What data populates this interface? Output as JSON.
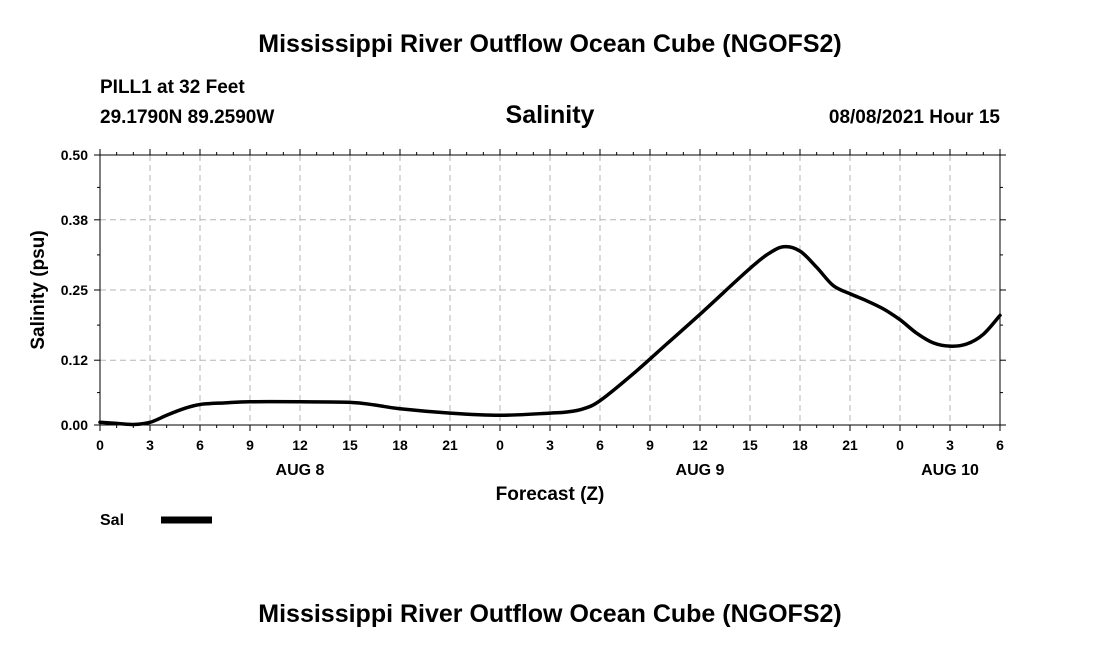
{
  "header": {
    "title": "Mississippi River Outflow Ocean Cube (NGOFS2)",
    "station": "PILL1 at 32 Feet",
    "coords": "29.1790N  89.2590W",
    "subtitle": "Salinity",
    "datetime": "08/08/2021 Hour 15"
  },
  "footer": {
    "title": "Mississippi River Outflow Ocean Cube (NGOFS2)"
  },
  "chart_data": {
    "type": "line",
    "title": "Salinity",
    "xlabel": "Forecast (Z)",
    "ylabel": "Salinity (psu)",
    "x_hours": [
      0,
      3,
      6,
      9,
      12,
      15,
      18,
      21,
      24,
      27,
      30,
      33,
      36,
      39,
      42,
      45,
      48,
      51,
      54
    ],
    "xtick_labels": [
      "0",
      "3",
      "6",
      "9",
      "12",
      "15",
      "18",
      "21",
      "0",
      "3",
      "6",
      "9",
      "12",
      "15",
      "18",
      "21",
      "0",
      "3",
      "6"
    ],
    "day_labels": [
      {
        "label": "AUG 8",
        "hour": 12
      },
      {
        "label": "AUG 9",
        "hour": 36
      },
      {
        "label": "AUG 10",
        "hour": 51
      }
    ],
    "yticks": [
      0.0,
      0.12,
      0.25,
      0.38,
      0.5
    ],
    "ytick_labels": [
      "0.00",
      "0.12",
      "0.25",
      "0.38",
      "0.50"
    ],
    "ylim": [
      0.0,
      0.5
    ],
    "xlim": [
      0,
      54
    ],
    "grid": true,
    "series": [
      {
        "name": "Sal",
        "color": "#000000",
        "x": [
          0,
          1,
          2,
          3,
          4,
          5,
          6,
          7.5,
          9,
          12,
          15,
          16.5,
          18,
          21,
          24,
          27,
          28,
          29,
          30,
          32,
          34,
          36,
          38,
          39,
          40,
          41,
          42,
          43,
          44,
          45,
          46,
          47,
          48,
          49,
          50,
          51,
          52,
          53,
          54
        ],
        "y": [
          0.005,
          0.003,
          0.001,
          0.005,
          0.018,
          0.03,
          0.038,
          0.041,
          0.043,
          0.043,
          0.042,
          0.037,
          0.03,
          0.022,
          0.018,
          0.022,
          0.024,
          0.03,
          0.045,
          0.095,
          0.15,
          0.205,
          0.262,
          0.29,
          0.315,
          0.33,
          0.322,
          0.292,
          0.258,
          0.243,
          0.23,
          0.215,
          0.195,
          0.17,
          0.152,
          0.146,
          0.15,
          0.168,
          0.203
        ]
      }
    ],
    "legend": {
      "position": "bottom-left",
      "entries": [
        "Sal"
      ]
    }
  }
}
